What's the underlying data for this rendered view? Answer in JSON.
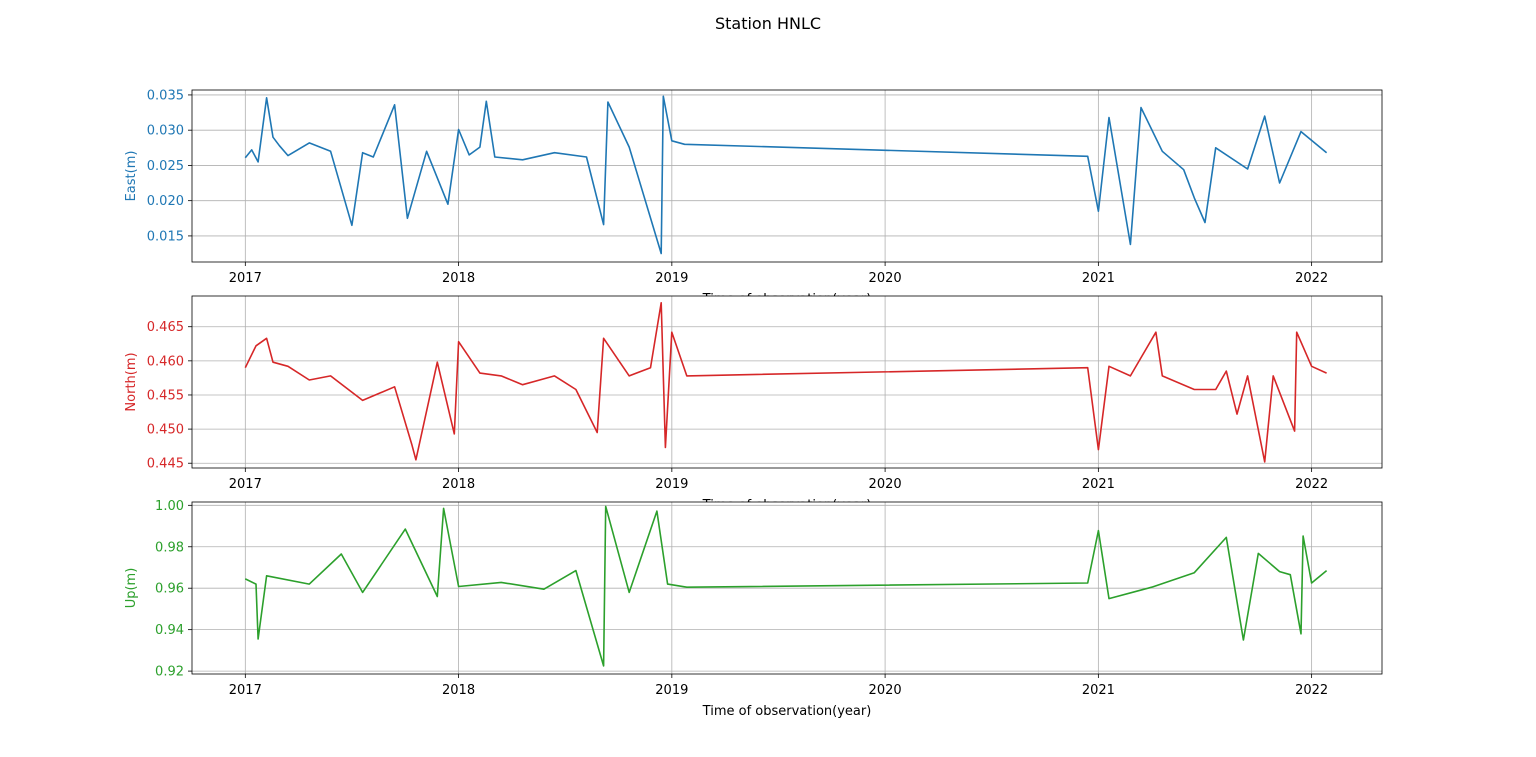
{
  "figure": {
    "title": "Station HNLC"
  },
  "chart_data": [
    {
      "type": "line",
      "title": "",
      "xlabel": "Time of observation(year)",
      "ylabel": "East(m)",
      "color": "#1f77b4",
      "grid": true,
      "xlim": [
        2016.75,
        2022.33
      ],
      "ylim": [
        0.0113,
        0.0357
      ],
      "xticks": [
        "2017",
        "2018",
        "2019",
        "2020",
        "2021",
        "2022"
      ],
      "yticks": [
        "0.015",
        "0.020",
        "0.025",
        "0.030",
        "0.035"
      ],
      "series": [
        {
          "values": [
            [
              2017.0,
              0.0261
            ],
            [
              2017.03,
              0.0272
            ],
            [
              2017.06,
              0.0255
            ],
            [
              2017.1,
              0.0346
            ],
            [
              2017.13,
              0.029
            ],
            [
              2017.16,
              0.0278
            ],
            [
              2017.2,
              0.0264
            ],
            [
              2017.3,
              0.0282
            ],
            [
              2017.4,
              0.027
            ],
            [
              2017.5,
              0.0165
            ],
            [
              2017.55,
              0.0268
            ],
            [
              2017.6,
              0.0262
            ],
            [
              2017.7,
              0.0336
            ],
            [
              2017.76,
              0.0175
            ],
            [
              2017.85,
              0.027
            ],
            [
              2017.95,
              0.0195
            ],
            [
              2018.0,
              0.0301
            ],
            [
              2018.05,
              0.0265
            ],
            [
              2018.1,
              0.0276
            ],
            [
              2018.13,
              0.0341
            ],
            [
              2018.17,
              0.0262
            ],
            [
              2018.3,
              0.0258
            ],
            [
              2018.45,
              0.0268
            ],
            [
              2018.6,
              0.0262
            ],
            [
              2018.68,
              0.0166
            ],
            [
              2018.7,
              0.034
            ],
            [
              2018.8,
              0.0276
            ],
            [
              2018.95,
              0.0125
            ],
            [
              2018.96,
              0.0348
            ],
            [
              2019.0,
              0.0285
            ],
            [
              2019.06,
              0.028
            ],
            [
              2020.95,
              0.0263
            ],
            [
              2021.0,
              0.0185
            ],
            [
              2021.05,
              0.0318
            ],
            [
              2021.15,
              0.0138
            ],
            [
              2021.2,
              0.0332
            ],
            [
              2021.3,
              0.027
            ],
            [
              2021.4,
              0.0244
            ],
            [
              2021.45,
              0.0204
            ],
            [
              2021.5,
              0.0169
            ],
            [
              2021.55,
              0.0275
            ],
            [
              2021.7,
              0.0245
            ],
            [
              2021.78,
              0.032
            ],
            [
              2021.85,
              0.0225
            ],
            [
              2021.95,
              0.0298
            ],
            [
              2022.07,
              0.0268
            ]
          ]
        }
      ]
    },
    {
      "type": "line",
      "title": "",
      "xlabel": "Time of observation(year)",
      "ylabel": "North(m)",
      "color": "#d62728",
      "grid": true,
      "xlim": [
        2016.75,
        2022.33
      ],
      "ylim": [
        0.4443,
        0.4695
      ],
      "xticks": [
        "2017",
        "2018",
        "2019",
        "2020",
        "2021",
        "2022"
      ],
      "yticks": [
        "0.445",
        "0.450",
        "0.455",
        "0.460",
        "0.465"
      ],
      "series": [
        {
          "values": [
            [
              2017.0,
              0.459
            ],
            [
              2017.05,
              0.4622
            ],
            [
              2017.1,
              0.4633
            ],
            [
              2017.13,
              0.4598
            ],
            [
              2017.2,
              0.4592
            ],
            [
              2017.3,
              0.4572
            ],
            [
              2017.4,
              0.4578
            ],
            [
              2017.55,
              0.4542
            ],
            [
              2017.7,
              0.4562
            ],
            [
              2017.78,
              0.4478
            ],
            [
              2017.8,
              0.4455
            ],
            [
              2017.9,
              0.4598
            ],
            [
              2017.98,
              0.4493
            ],
            [
              2018.0,
              0.4628
            ],
            [
              2018.1,
              0.4582
            ],
            [
              2018.2,
              0.4578
            ],
            [
              2018.3,
              0.4565
            ],
            [
              2018.45,
              0.4578
            ],
            [
              2018.55,
              0.4558
            ],
            [
              2018.65,
              0.4495
            ],
            [
              2018.68,
              0.4633
            ],
            [
              2018.8,
              0.4578
            ],
            [
              2018.9,
              0.459
            ],
            [
              2018.95,
              0.4685
            ],
            [
              2018.97,
              0.4473
            ],
            [
              2019.0,
              0.4642
            ],
            [
              2019.07,
              0.4578
            ],
            [
              2020.95,
              0.459
            ],
            [
              2021.0,
              0.447
            ],
            [
              2021.05,
              0.4592
            ],
            [
              2021.15,
              0.4578
            ],
            [
              2021.27,
              0.4642
            ],
            [
              2021.3,
              0.4578
            ],
            [
              2021.45,
              0.4558
            ],
            [
              2021.55,
              0.4558
            ],
            [
              2021.6,
              0.4585
            ],
            [
              2021.65,
              0.4522
            ],
            [
              2021.7,
              0.4578
            ],
            [
              2021.78,
              0.4452
            ],
            [
              2021.82,
              0.4578
            ],
            [
              2021.92,
              0.4497
            ],
            [
              2021.93,
              0.4642
            ],
            [
              2022.0,
              0.4592
            ],
            [
              2022.07,
              0.4582
            ]
          ]
        }
      ]
    },
    {
      "type": "line",
      "title": "",
      "xlabel": "Time of observation(year)",
      "ylabel": "Up(m)",
      "color": "#2ca02c",
      "grid": true,
      "xlim": [
        2016.75,
        2022.33
      ],
      "ylim": [
        0.9186,
        1.0016
      ],
      "xticks": [
        "2017",
        "2018",
        "2019",
        "2020",
        "2021",
        "2022"
      ],
      "yticks": [
        "0.92",
        "0.94",
        "0.96",
        "0.98",
        "1.00"
      ],
      "series": [
        {
          "values": [
            [
              2017.0,
              0.9645
            ],
            [
              2017.05,
              0.962
            ],
            [
              2017.06,
              0.9355
            ],
            [
              2017.1,
              0.966
            ],
            [
              2017.3,
              0.962
            ],
            [
              2017.45,
              0.9765
            ],
            [
              2017.55,
              0.958
            ],
            [
              2017.75,
              0.9885
            ],
            [
              2017.9,
              0.956
            ],
            [
              2017.93,
              0.9985
            ],
            [
              2018.0,
              0.9608
            ],
            [
              2018.2,
              0.9628
            ],
            [
              2018.4,
              0.9595
            ],
            [
              2018.55,
              0.9685
            ],
            [
              2018.68,
              0.9225
            ],
            [
              2018.69,
              0.9995
            ],
            [
              2018.8,
              0.958
            ],
            [
              2018.93,
              0.9972
            ],
            [
              2018.98,
              0.962
            ],
            [
              2019.07,
              0.9605
            ],
            [
              2020.95,
              0.9625
            ],
            [
              2021.0,
              0.9878
            ],
            [
              2021.05,
              0.955
            ],
            [
              2021.25,
              0.9605
            ],
            [
              2021.45,
              0.9675
            ],
            [
              2021.6,
              0.9845
            ],
            [
              2021.68,
              0.935
            ],
            [
              2021.75,
              0.9768
            ],
            [
              2021.85,
              0.968
            ],
            [
              2021.9,
              0.9665
            ],
            [
              2021.95,
              0.938
            ],
            [
              2021.96,
              0.9852
            ],
            [
              2022.0,
              0.9625
            ],
            [
              2022.07,
              0.9685
            ]
          ]
        }
      ]
    }
  ]
}
